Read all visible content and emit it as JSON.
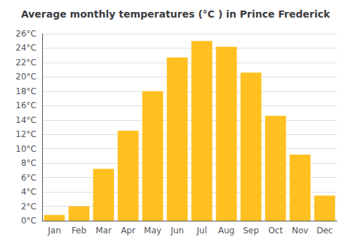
{
  "chart_data": {
    "type": "bar",
    "title": "Average monthly temperatures (°C ) in Prince Frederick",
    "categories": [
      "Jan",
      "Feb",
      "Mar",
      "Apr",
      "May",
      "Jun",
      "Jul",
      "Aug",
      "Sep",
      "Oct",
      "Nov",
      "Dec"
    ],
    "values": [
      0.8,
      2.0,
      7.2,
      12.5,
      18.0,
      22.7,
      25.0,
      24.2,
      20.6,
      14.6,
      9.2,
      3.5
    ],
    "color": "#FFC020",
    "ylim": [
      0,
      26
    ],
    "yticks": [
      {
        "value": 0,
        "label": "0°C"
      },
      {
        "value": 2,
        "label": "2°C"
      },
      {
        "value": 4,
        "label": "4°C"
      },
      {
        "value": 6,
        "label": "6°C"
      },
      {
        "value": 8,
        "label": "8°C"
      },
      {
        "value": 10,
        "label": "10°C"
      },
      {
        "value": 12,
        "label": "12°C"
      },
      {
        "value": 14,
        "label": "14°C"
      },
      {
        "value": 16,
        "label": "16°C"
      },
      {
        "value": 18,
        "label": "18°C"
      },
      {
        "value": 20,
        "label": "20°C"
      },
      {
        "value": 22,
        "label": "22°C"
      },
      {
        "value": 24,
        "label": "24°C"
      },
      {
        "value": 26,
        "label": "26°C"
      }
    ],
    "grid": true
  }
}
